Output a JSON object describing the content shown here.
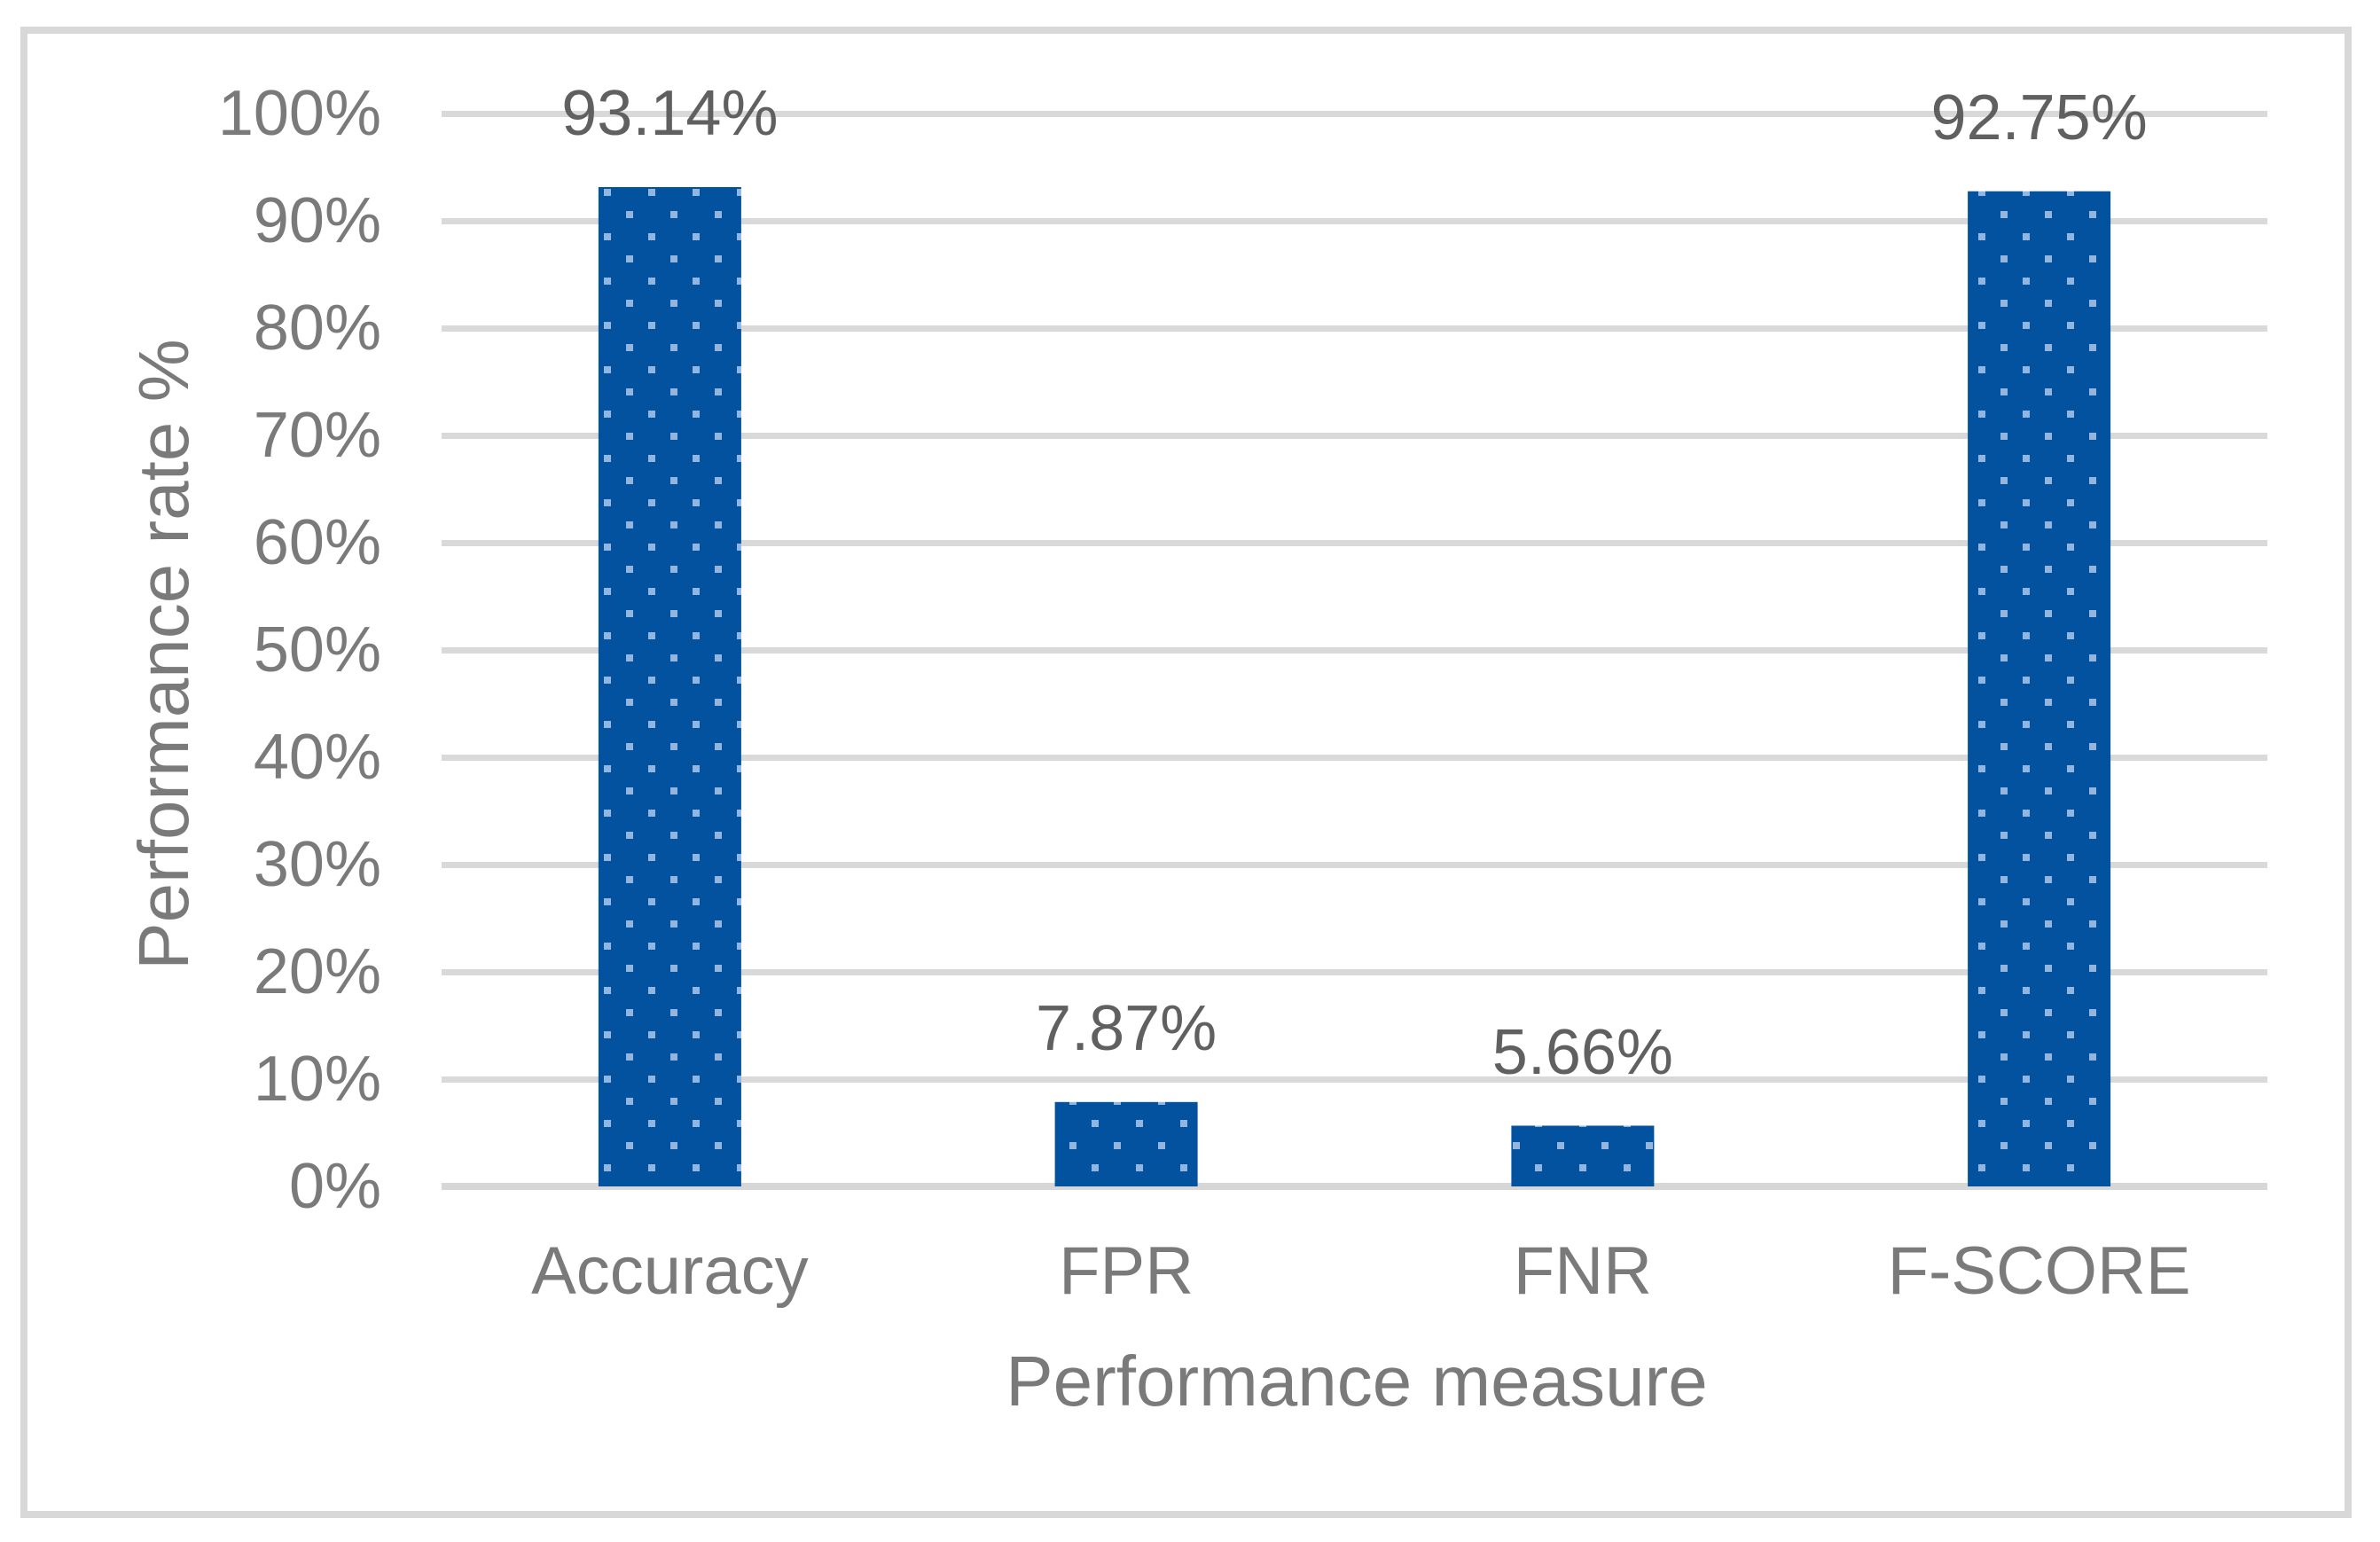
{
  "chart_data": {
    "type": "bar",
    "title": "",
    "categories": [
      "Accuracy",
      "FPR",
      "FNR",
      "F-SCORE"
    ],
    "values": [
      93.14,
      7.87,
      5.66,
      92.75
    ],
    "data_labels": [
      "93.14%",
      "7.87%",
      "5.66%",
      "92.75%"
    ],
    "xlabel": "Performance measure",
    "ylabel": "Performance rate %",
    "ylim": [
      0,
      100
    ],
    "y_ticks": [
      {
        "value": 0,
        "label": "0%"
      },
      {
        "value": 10,
        "label": "10%"
      },
      {
        "value": 20,
        "label": "20%"
      },
      {
        "value": 30,
        "label": "30%"
      },
      {
        "value": 40,
        "label": "40%"
      },
      {
        "value": 50,
        "label": "50%"
      },
      {
        "value": 60,
        "label": "60%"
      },
      {
        "value": 70,
        "label": "70%"
      },
      {
        "value": 80,
        "label": "80%"
      },
      {
        "value": 90,
        "label": "90%"
      },
      {
        "value": 100,
        "label": "100%"
      }
    ],
    "grid": true,
    "legend": "none",
    "bar_pattern": "light-dots-on-dark",
    "colors": {
      "bar_fill": "#02529F",
      "bar_dot": "#92B6E0",
      "gridline": "#D9D9D9",
      "axis_line": "#D7D7D7",
      "tick_text": "#7A7A7A",
      "axis_title_text": "#7A7A7A",
      "data_label_text": "#606060",
      "figure_border": "#D8D8D8",
      "background": "#FFFFFF"
    }
  }
}
